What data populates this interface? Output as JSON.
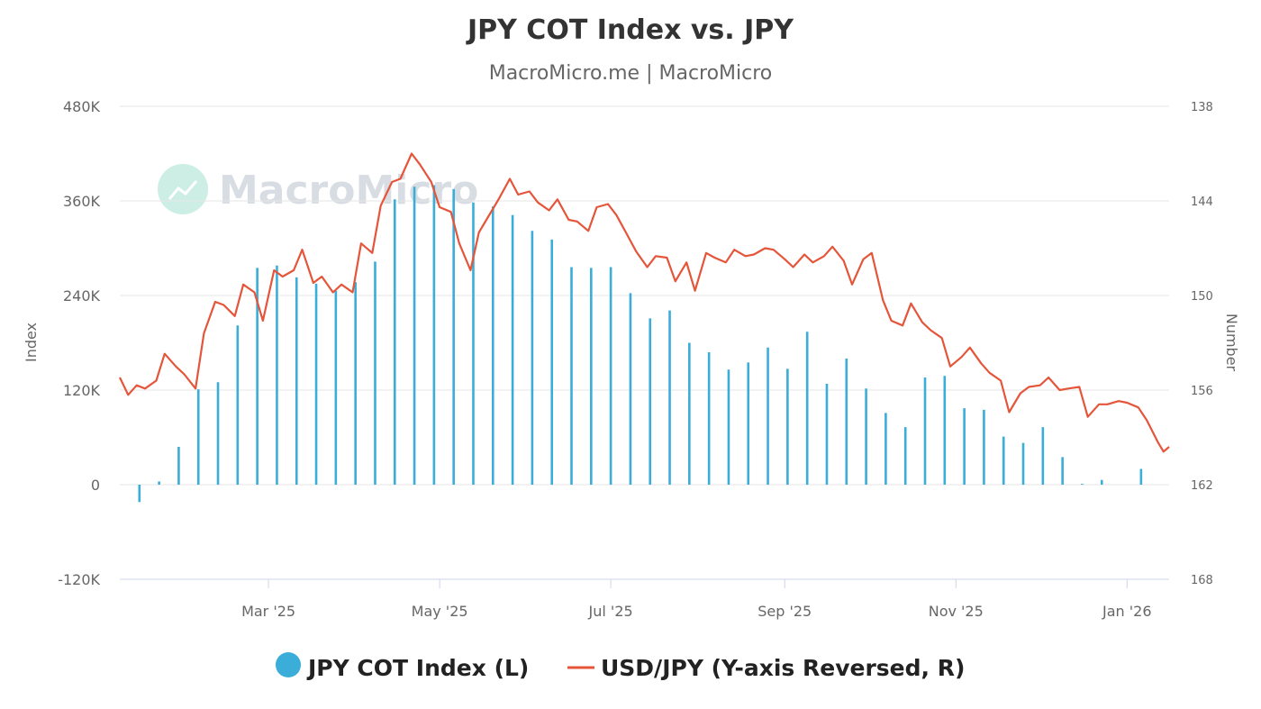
{
  "chart_data": {
    "type": "bar+line",
    "title": "JPY COT Index vs. JPY",
    "subtitle": "MacroMicro.me | MacroMicro",
    "watermark": "MacroMicro",
    "y_left": {
      "label": "Index",
      "range": [
        -120000,
        480000
      ],
      "ticks": [
        -120000,
        0,
        120000,
        240000,
        360000,
        480000
      ],
      "tick_labels": [
        "-120K",
        "0",
        "120K",
        "240K",
        "360K",
        "480K"
      ]
    },
    "y_right": {
      "label": "Number",
      "reversed": true,
      "range": [
        138,
        168
      ],
      "ticks": [
        138,
        144,
        150,
        156,
        162,
        168
      ],
      "tick_labels": [
        "138",
        "144",
        "150",
        "156",
        "162",
        "168"
      ]
    },
    "x_axis": {
      "type": "date",
      "range": [
        "2025-01-07",
        "2026-01-16"
      ],
      "ticks": [
        "2025-03-01",
        "2025-05-01",
        "2025-07-01",
        "2025-09-01",
        "2025-11-01",
        "2026-01-01"
      ],
      "tick_labels": [
        "Mar '25",
        "May '25",
        "Jul '25",
        "Sep '25",
        "Nov '25",
        "Jan '26"
      ]
    },
    "grid": "horizontal",
    "legend_position": "bottom-center",
    "series": [
      {
        "name": "JPY COT Index (L)",
        "type": "bar",
        "axis": "left",
        "color": "#3aaed8",
        "x": [
          "2025-01-14",
          "2025-01-21",
          "2025-01-28",
          "2025-02-04",
          "2025-02-11",
          "2025-02-18",
          "2025-02-25",
          "2025-03-04",
          "2025-03-11",
          "2025-03-18",
          "2025-03-25",
          "2025-04-01",
          "2025-04-08",
          "2025-04-15",
          "2025-04-22",
          "2025-04-29",
          "2025-05-06",
          "2025-05-13",
          "2025-05-20",
          "2025-05-27",
          "2025-06-03",
          "2025-06-10",
          "2025-06-17",
          "2025-06-24",
          "2025-07-01",
          "2025-07-08",
          "2025-07-15",
          "2025-07-22",
          "2025-07-29",
          "2025-08-05",
          "2025-08-12",
          "2025-08-19",
          "2025-08-26",
          "2025-09-02",
          "2025-09-09",
          "2025-09-16",
          "2025-09-23",
          "2025-09-30",
          "2025-10-07",
          "2025-10-14",
          "2025-10-21",
          "2025-10-28",
          "2025-11-04",
          "2025-11-11",
          "2025-11-18",
          "2025-11-25",
          "2025-12-02",
          "2025-12-09",
          "2025-12-16",
          "2025-12-23",
          "2025-12-30",
          "2026-01-06",
          "2026-01-13"
        ],
        "values": [
          -22000,
          4000,
          48000,
          121000,
          130000,
          202000,
          275000,
          278000,
          263000,
          255000,
          246000,
          257000,
          283000,
          362000,
          378000,
          380000,
          375000,
          358000,
          353000,
          342000,
          322000,
          311000,
          276000,
          275000,
          276000,
          243000,
          211000,
          221000,
          180000,
          168000,
          146000,
          155000,
          174000,
          147000,
          194000,
          128000,
          160000,
          122000,
          91000,
          73000,
          136000,
          138000,
          97000,
          95000,
          61000,
          53000,
          73000,
          35000,
          1000,
          6000,
          null,
          20000,
          null
        ]
      },
      {
        "name": "USD/JPY (Y-axis Reversed, R)",
        "type": "line",
        "axis": "right",
        "color": "#e4553a",
        "x": [
          "2025-01-07",
          "2025-01-10",
          "2025-01-13",
          "2025-01-16",
          "2025-01-20",
          "2025-01-23",
          "2025-01-27",
          "2025-01-30",
          "2025-02-03",
          "2025-02-06",
          "2025-02-10",
          "2025-02-13",
          "2025-02-17",
          "2025-02-20",
          "2025-02-24",
          "2025-02-27",
          "2025-03-03",
          "2025-03-06",
          "2025-03-10",
          "2025-03-13",
          "2025-03-17",
          "2025-03-20",
          "2025-03-24",
          "2025-03-27",
          "2025-03-31",
          "2025-04-03",
          "2025-04-07",
          "2025-04-10",
          "2025-04-14",
          "2025-04-17",
          "2025-04-21",
          "2025-04-24",
          "2025-04-28",
          "2025-05-01",
          "2025-05-05",
          "2025-05-08",
          "2025-05-12",
          "2025-05-15",
          "2025-05-19",
          "2025-05-22",
          "2025-05-26",
          "2025-05-29",
          "2025-06-02",
          "2025-06-05",
          "2025-06-09",
          "2025-06-12",
          "2025-06-16",
          "2025-06-19",
          "2025-06-23",
          "2025-06-26",
          "2025-06-30",
          "2025-07-03",
          "2025-07-07",
          "2025-07-10",
          "2025-07-14",
          "2025-07-17",
          "2025-07-21",
          "2025-07-24",
          "2025-07-28",
          "2025-07-31",
          "2025-08-04",
          "2025-08-07",
          "2025-08-11",
          "2025-08-14",
          "2025-08-18",
          "2025-08-21",
          "2025-08-25",
          "2025-08-28",
          "2025-09-01",
          "2025-09-04",
          "2025-09-08",
          "2025-09-11",
          "2025-09-15",
          "2025-09-18",
          "2025-09-22",
          "2025-09-25",
          "2025-09-29",
          "2025-10-02",
          "2025-10-06",
          "2025-10-09",
          "2025-10-13",
          "2025-10-16",
          "2025-10-20",
          "2025-10-23",
          "2025-10-27",
          "2025-10-30",
          "2025-11-03",
          "2025-11-06",
          "2025-11-10",
          "2025-11-13",
          "2025-11-17",
          "2025-11-20",
          "2025-11-24",
          "2025-11-27",
          "2025-12-01",
          "2025-12-04",
          "2025-12-08",
          "2025-12-11",
          "2025-12-15",
          "2025-12-18",
          "2025-12-22",
          "2025-12-25",
          "2025-12-29",
          "2026-01-01",
          "2026-01-05",
          "2026-01-08",
          "2026-01-12",
          "2026-01-14",
          "2026-01-16"
        ],
        "values": [
          155.2,
          156.3,
          155.7,
          155.9,
          155.4,
          153.7,
          154.5,
          155.0,
          155.9,
          152.4,
          150.4,
          150.6,
          151.3,
          149.3,
          149.8,
          151.6,
          148.4,
          148.8,
          148.4,
          147.1,
          149.2,
          148.8,
          149.8,
          149.3,
          149.8,
          146.7,
          147.3,
          144.3,
          142.8,
          142.6,
          141.0,
          141.7,
          142.8,
          144.4,
          144.7,
          146.7,
          148.4,
          146.0,
          144.8,
          143.9,
          142.6,
          143.6,
          143.4,
          144.1,
          144.6,
          143.9,
          145.2,
          145.3,
          145.9,
          144.4,
          144.2,
          144.9,
          146.2,
          147.2,
          148.2,
          147.5,
          147.6,
          149.1,
          147.9,
          149.7,
          147.3,
          147.6,
          147.9,
          147.1,
          147.5,
          147.4,
          147.0,
          147.1,
          147.7,
          148.2,
          147.4,
          147.9,
          147.5,
          146.9,
          147.8,
          149.3,
          147.7,
          147.3,
          150.3,
          151.6,
          151.9,
          150.5,
          151.7,
          152.2,
          152.7,
          154.5,
          153.9,
          153.3,
          154.3,
          154.9,
          155.4,
          157.4,
          156.2,
          155.8,
          155.7,
          155.2,
          156.0,
          155.9,
          155.8,
          157.7,
          156.9,
          156.9,
          156.7,
          156.8,
          157.1,
          157.9,
          159.3,
          159.9,
          159.6
        ]
      }
    ]
  }
}
